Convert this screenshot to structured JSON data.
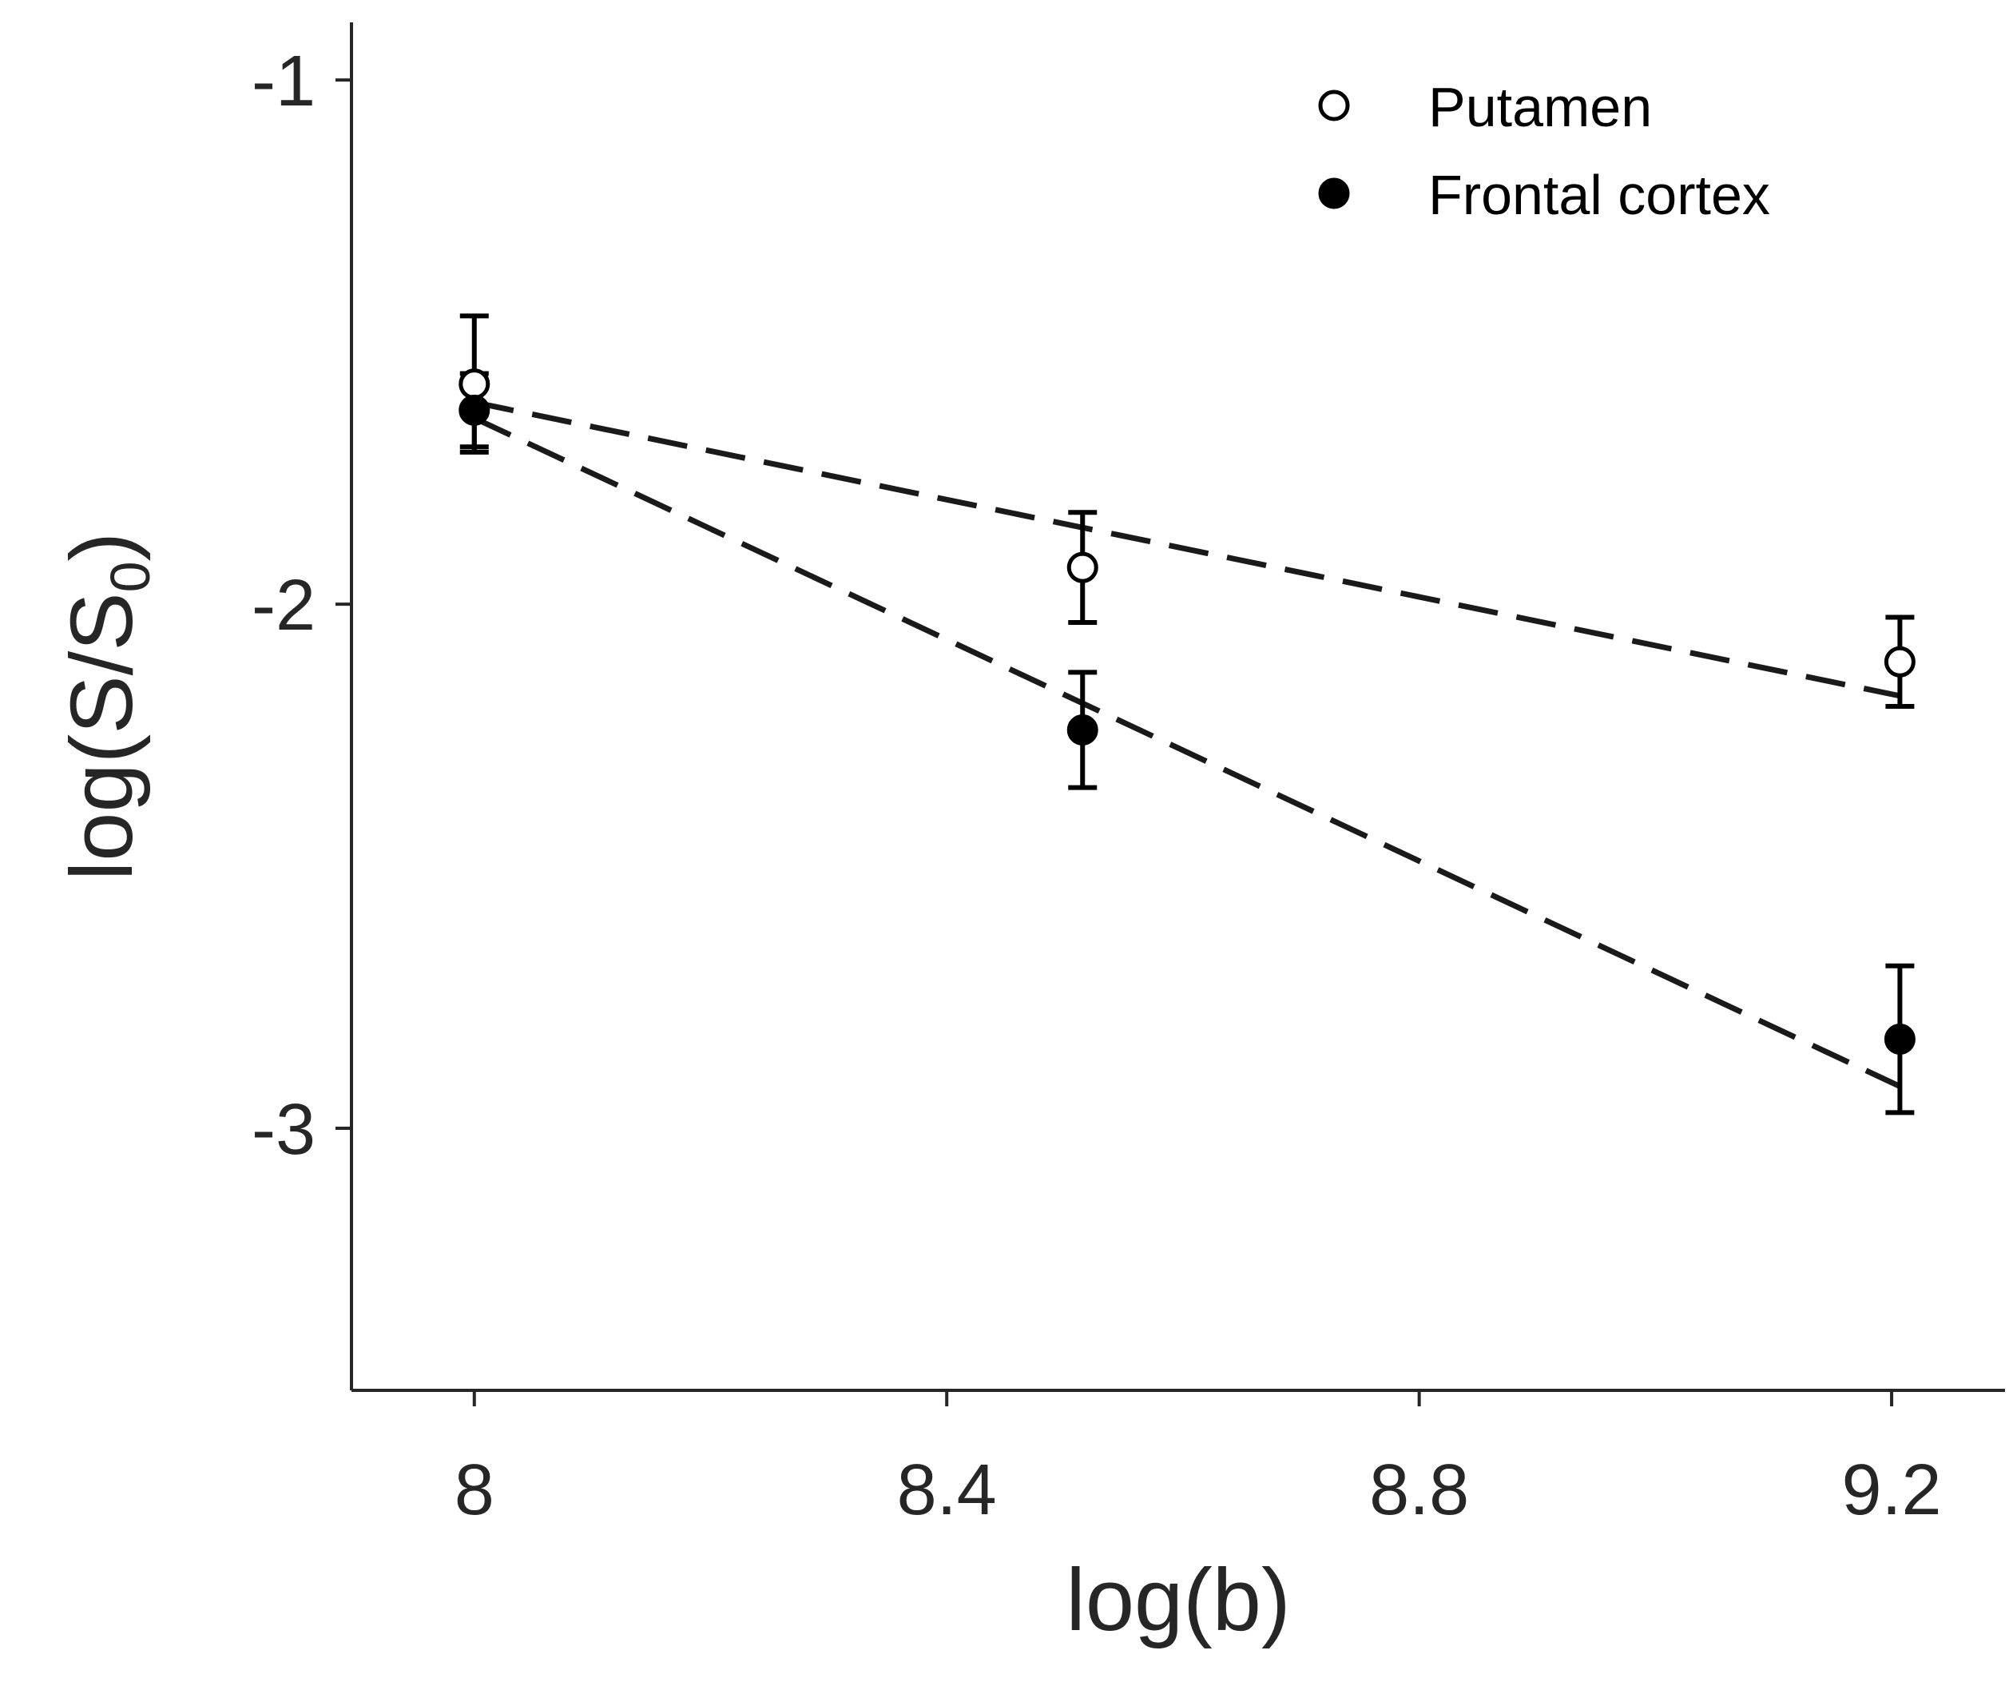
{
  "chart_data": {
    "type": "scatter",
    "xlabel": "log(b)",
    "ylabel": {
      "main": "log(S/S",
      "subscript": "0",
      "close": ")"
    },
    "xlim": [
      7.896,
      9.296
    ],
    "ylim": [
      -3.5,
      -0.89
    ],
    "xticks": [
      8,
      8.4,
      8.8,
      9.2
    ],
    "xtick_labels": [
      "8",
      "8.4",
      "8.8",
      "9.2"
    ],
    "yticks": [
      -1,
      -2,
      -3
    ],
    "ytick_labels": [
      "-1",
      "-2",
      "-3"
    ],
    "grid": false,
    "legend_position": "top-right",
    "series": [
      {
        "name": "Putamen",
        "marker": "open-circle",
        "x": [
          8.0,
          8.515,
          9.207
        ],
        "y": [
          -1.58,
          -1.93,
          -2.11
        ],
        "error": [
          0.13,
          0.105,
          0.085
        ],
        "fit_line": {
          "x": [
            8.0,
            9.207
          ],
          "y": [
            -1.615,
            -2.175
          ]
        }
      },
      {
        "name": "Frontal cortex",
        "marker": "filled-circle",
        "x": [
          8.0,
          8.515,
          9.207
        ],
        "y": [
          -1.63,
          -2.24,
          -2.83
        ],
        "error": [
          0.07,
          0.11,
          0.14
        ],
        "fit_line": {
          "x": [
            8.0,
            9.207
          ],
          "y": [
            -1.645,
            -2.92
          ]
        }
      }
    ],
    "colors": {
      "axes": "#262626",
      "marker": "#000000",
      "line": "#1a1a1a"
    }
  }
}
